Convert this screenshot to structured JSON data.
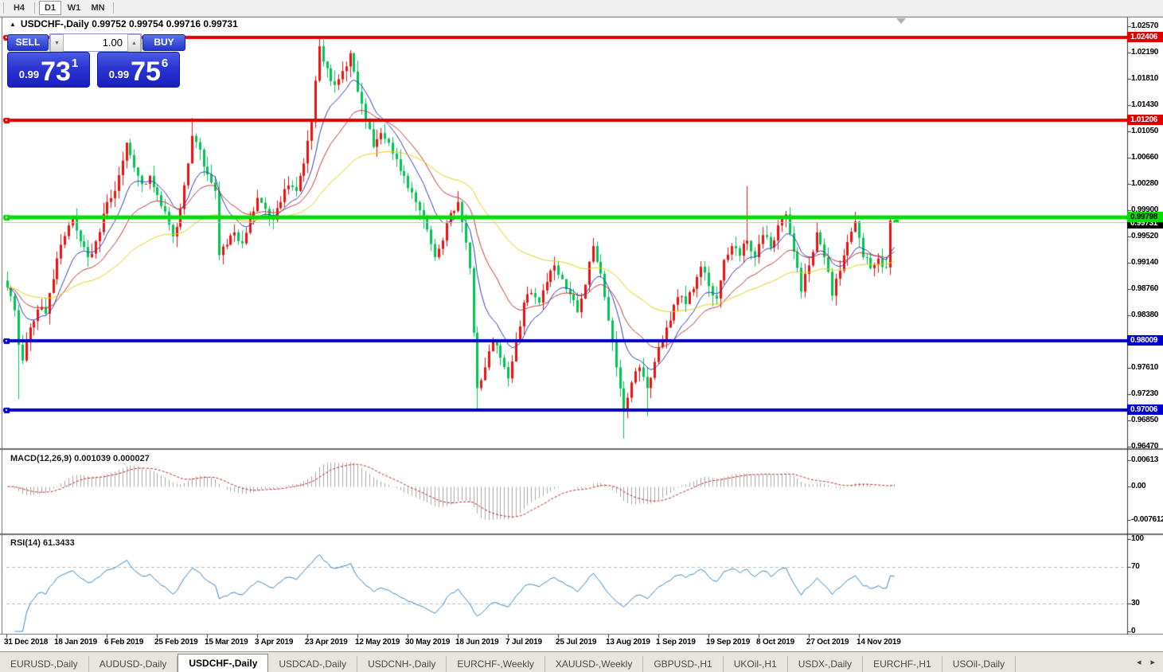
{
  "toolbar": {
    "timeframes": [
      "H4",
      "D1",
      "W1",
      "MN"
    ],
    "active": "D1"
  },
  "window": {
    "collapse_icon": "up-triangle",
    "title": "USDCHF-,Daily 0.99752 0.99754 0.99716 0.99731"
  },
  "one_click": {
    "sell_label": "SELL",
    "buy_label": "BUY",
    "volume": "1.00",
    "spin_down_icon": "▼",
    "spin_up_icon": "▲",
    "sell_price": {
      "small": "0.99",
      "big": "73",
      "sup": "1"
    },
    "buy_price": {
      "small": "0.99",
      "big": "75",
      "sup": "6"
    }
  },
  "chart_data": {
    "type": "candlestick",
    "symbol": "USDCHF-",
    "timeframe": "Daily",
    "current_bar": {
      "open": 0.99752,
      "high": 0.99754,
      "low": 0.99716,
      "close": 0.99731
    },
    "y_axis_range": [
      0.9647,
      1.0257
    ],
    "y_ticks": [
      "1.02570",
      "1.02190",
      "1.01810",
      "1.01430",
      "1.01050",
      "1.00660",
      "1.00280",
      "0.99900",
      "0.99520",
      "0.99140",
      "0.98760",
      "0.98380",
      "0.97610",
      "0.97230",
      "0.96850",
      "0.96470"
    ],
    "time_axis_labels": [
      "31 Dec 2018",
      "18 Jan 2019",
      "6 Feb 2019",
      "25 Feb 2019",
      "15 Mar 2019",
      "3 Apr 2019",
      "23 Apr 2019",
      "12 May 2019",
      "30 May 2019",
      "18 Jun 2019",
      "7 Jul 2019",
      "25 Jul 2019",
      "13 Aug 2019",
      "1 Sep 2019",
      "19 Sep 2019",
      "8 Oct 2019",
      "27 Oct 2019",
      "14 Nov 2019"
    ],
    "levels": [
      {
        "price": 1.02406,
        "label": "1.02406",
        "color": "#e00000",
        "thickness": 4,
        "badge_bg": "#e00000",
        "badge_fg": "#ffffff"
      },
      {
        "price": 1.01206,
        "label": "1.01206",
        "color": "#e00000",
        "thickness": 4,
        "badge_bg": "#e00000",
        "badge_fg": "#ffffff"
      },
      {
        "price": 0.99798,
        "label": "0.99798",
        "color": "#00dd00",
        "thickness": 5,
        "badge_bg": "#00dd00",
        "badge_fg": "#000000"
      },
      {
        "price": 0.98009,
        "label": "0.98009",
        "color": "#0000cc",
        "thickness": 4,
        "badge_bg": "#0000cc",
        "badge_fg": "#ffffff"
      },
      {
        "price": 0.97006,
        "label": "0.97006",
        "color": "#0000cc",
        "thickness": 4,
        "badge_bg": "#0000cc",
        "badge_fg": "#ffffff"
      }
    ],
    "current_price_line": {
      "price": 0.99731,
      "label": "0.99731",
      "color": "#bcbcbc",
      "badge_bg": "#000000",
      "badge_fg": "#ffffff"
    },
    "candle_colors": {
      "up": "#ee1010",
      "down": "#00c455"
    },
    "moving_averages": [
      {
        "name": "fast",
        "period": 10,
        "color": "#2b3fc0"
      },
      {
        "name": "medium",
        "period": 22,
        "color": "#c43535"
      },
      {
        "name": "slow",
        "period": 55,
        "color": "#e8d216"
      }
    ],
    "close_anchors": [
      [
        0,
        0.9878
      ],
      [
        2,
        0.9845
      ],
      [
        3,
        0.9795
      ],
      [
        4,
        0.9772
      ],
      [
        6,
        0.982
      ],
      [
        8,
        0.9846
      ],
      [
        10,
        0.984
      ],
      [
        12,
        0.989
      ],
      [
        14,
        0.994
      ],
      [
        16,
        0.9968
      ],
      [
        17,
        0.9978
      ],
      [
        19,
        0.9945
      ],
      [
        21,
        0.9922
      ],
      [
        23,
        0.9945
      ],
      [
        25,
        0.9985
      ],
      [
        26,
        1.0002
      ],
      [
        28,
        1.0018
      ],
      [
        30,
        1.0062
      ],
      [
        31,
        1.0088
      ],
      [
        33,
        1.0052
      ],
      [
        35,
        1.0028
      ],
      [
        37,
        1.004
      ],
      [
        39,
        1.0012
      ],
      [
        41,
        0.9988
      ],
      [
        43,
        0.9952
      ],
      [
        45,
        0.9992
      ],
      [
        47,
        1.0058
      ],
      [
        48,
        1.0098
      ],
      [
        50,
        1.0078
      ],
      [
        52,
        1.0042
      ],
      [
        54,
        1.0018
      ],
      [
        55,
        0.9925
      ],
      [
        57,
        0.994
      ],
      [
        59,
        0.9958
      ],
      [
        61,
        0.9942
      ],
      [
        63,
        0.998
      ],
      [
        65,
        1.0008
      ],
      [
        67,
        0.9992
      ],
      [
        69,
        0.9976
      ],
      [
        71,
        1.0002
      ],
      [
        73,
        1.0026
      ],
      [
        75,
        1.0018
      ],
      [
        77,
        1.0058
      ],
      [
        79,
        1.0118
      ],
      [
        80,
        1.0178
      ],
      [
        81,
        1.0228
      ],
      [
        83,
        1.0196
      ],
      [
        85,
        1.0172
      ],
      [
        87,
        1.0192
      ],
      [
        89,
        1.0218
      ],
      [
        91,
        1.0162
      ],
      [
        93,
        1.012
      ],
      [
        95,
        1.0082
      ],
      [
        97,
        1.0102
      ],
      [
        99,
        1.0088
      ],
      [
        101,
        1.0064
      ],
      [
        103,
        1.004
      ],
      [
        105,
        1.0016
      ],
      [
        107,
        0.999
      ],
      [
        109,
        0.9962
      ],
      [
        111,
        0.9922
      ],
      [
        113,
        0.9946
      ],
      [
        115,
        0.9986
      ],
      [
        117,
        1.0002
      ],
      [
        118,
        0.9972
      ],
      [
        120,
        0.9906
      ],
      [
        122,
        0.9732
      ],
      [
        124,
        0.9762
      ],
      [
        126,
        0.98
      ],
      [
        128,
        0.9776
      ],
      [
        130,
        0.9746
      ],
      [
        132,
        0.98
      ],
      [
        134,
        0.9856
      ],
      [
        136,
        0.987
      ],
      [
        138,
        0.9856
      ],
      [
        140,
        0.9886
      ],
      [
        142,
        0.991
      ],
      [
        144,
        0.989
      ],
      [
        146,
        0.9868
      ],
      [
        148,
        0.9842
      ],
      [
        150,
        0.9882
      ],
      [
        152,
        0.9938
      ],
      [
        154,
        0.9898
      ],
      [
        156,
        0.983
      ],
      [
        158,
        0.9762
      ],
      [
        160,
        0.9702
      ],
      [
        162,
        0.974
      ],
      [
        164,
        0.9762
      ],
      [
        166,
        0.9732
      ],
      [
        168,
        0.977
      ],
      [
        170,
        0.9802
      ],
      [
        172,
        0.983
      ],
      [
        174,
        0.9864
      ],
      [
        176,
        0.9854
      ],
      [
        178,
        0.9876
      ],
      [
        180,
        0.9908
      ],
      [
        182,
        0.988
      ],
      [
        184,
        0.9862
      ],
      [
        186,
        0.9918
      ],
      [
        188,
        0.9938
      ],
      [
        190,
        0.9924
      ],
      [
        192,
        0.9946
      ],
      [
        194,
        0.9922
      ],
      [
        196,
        0.9954
      ],
      [
        198,
        0.9936
      ],
      [
        200,
        0.9968
      ],
      [
        202,
        0.9984
      ],
      [
        204,
        0.993
      ],
      [
        206,
        0.9872
      ],
      [
        208,
        0.991
      ],
      [
        210,
        0.9958
      ],
      [
        212,
        0.9922
      ],
      [
        214,
        0.9866
      ],
      [
        216,
        0.9902
      ],
      [
        218,
        0.9944
      ],
      [
        220,
        0.9974
      ],
      [
        222,
        0.9922
      ],
      [
        224,
        0.9906
      ],
      [
        226,
        0.992
      ],
      [
        228,
        0.9907
      ],
      [
        229,
        0.99752
      ],
      [
        230,
        0.99731
      ]
    ],
    "wick_overrides": {
      "3": {
        "low": 0.9716
      },
      "48": {
        "high": 1.0124
      },
      "81": {
        "high": 1.0243
      },
      "117": {
        "high": 1.0018
      },
      "122": {
        "low": 0.97
      },
      "152": {
        "high": 0.995
      },
      "160": {
        "low": 0.9659
      },
      "166": {
        "low": 0.9692
      },
      "192": {
        "high": 1.0025
      },
      "230": {
        "high": 0.99754,
        "low": 0.99716
      }
    }
  },
  "indicators": {
    "macd": {
      "label": "MACD(12,26,9) 0.001039 0.000027",
      "params": [
        12,
        26,
        9
      ],
      "value": 0.001039,
      "signal": 2.7e-05,
      "scale_max": "0.00613",
      "scale_zero": "0.00",
      "scale_min": "-0.0076125",
      "histogram_color": "#a8a8a8",
      "signal_color": "#cc2222"
    },
    "rsi": {
      "label": "RSI(14) 61.3433",
      "period": 14,
      "value": 61.3433,
      "scale": [
        "100",
        "70",
        "30",
        "0"
      ],
      "levels": [
        70,
        30
      ],
      "line_color": "#3a87c8",
      "level_color": "#bdbdbd"
    }
  },
  "tab_bar": {
    "tabs": [
      "EURUSD-,Daily",
      "AUDUSD-,Daily",
      "USDCHF-,Daily",
      "USDCAD-,Daily",
      "USDCNH-,Daily",
      "EURCHF-,Weekly",
      "XAUUSD-,Weekly",
      "GBPUSD-,H1",
      "UKOil-,H1",
      "USDX-,Daily",
      "EURCHF-,H1",
      "USOil-,Daily"
    ],
    "active": "USDCHF-,Daily",
    "scroll_left_icon": "◂",
    "scroll_right_icon": "▸"
  }
}
